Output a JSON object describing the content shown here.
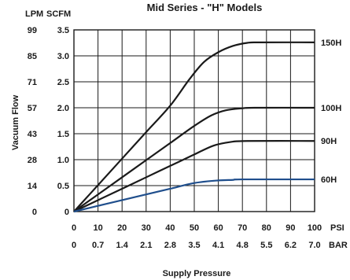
{
  "chart_data": {
    "type": "line",
    "title": "Mid Series - \"H\" Models",
    "xlabel": "Supply Pressure",
    "ylabel": "Vacuum Flow",
    "x_unit_primary": "PSI",
    "x_unit_secondary": "BAR",
    "y_unit_left": "LPM",
    "y_unit_right": "SCFM",
    "x_ticks_psi": [
      "0",
      "10",
      "20",
      "30",
      "40",
      "50",
      "60",
      "70",
      "80",
      "90",
      "100"
    ],
    "x_ticks_bar": [
      "0",
      "0.7",
      "1.4",
      "2.1",
      "2.8",
      "3.5",
      "4.1",
      "4.8",
      "5.5",
      "6.2",
      "7.0"
    ],
    "y_ticks_scfm": [
      "0",
      "0.5",
      "1.0",
      "1.5",
      "2.0",
      "2.5",
      "3.0",
      "3.5"
    ],
    "y_ticks_lpm": [
      "0",
      "14",
      "28",
      "43",
      "57",
      "71",
      "85",
      "99"
    ],
    "xlim": [
      0,
      100
    ],
    "ylim": [
      0,
      3.5
    ],
    "grid": true,
    "series": [
      {
        "name": "150H",
        "color": "#1a1a1a",
        "points": [
          [
            0,
            0
          ],
          [
            10,
            0.51
          ],
          [
            20,
            1.02
          ],
          [
            30,
            1.53
          ],
          [
            40,
            2.04
          ],
          [
            48,
            2.55
          ],
          [
            54,
            2.88
          ],
          [
            60,
            3.07
          ],
          [
            66,
            3.19
          ],
          [
            72,
            3.25
          ],
          [
            77,
            3.26
          ],
          [
            100,
            3.26
          ]
        ]
      },
      {
        "name": "100H",
        "color": "#1a1a1a",
        "points": [
          [
            0,
            0
          ],
          [
            10,
            0.33
          ],
          [
            20,
            0.66
          ],
          [
            30,
            0.99
          ],
          [
            40,
            1.32
          ],
          [
            50,
            1.65
          ],
          [
            57,
            1.85
          ],
          [
            63,
            1.95
          ],
          [
            70,
            1.99
          ],
          [
            75,
            2.0
          ],
          [
            100,
            2.0
          ]
        ]
      },
      {
        "name": "90H",
        "color": "#1a1a1a",
        "points": [
          [
            0,
            0
          ],
          [
            10,
            0.22
          ],
          [
            20,
            0.44
          ],
          [
            30,
            0.66
          ],
          [
            40,
            0.88
          ],
          [
            50,
            1.1
          ],
          [
            58,
            1.27
          ],
          [
            65,
            1.34
          ],
          [
            72,
            1.36
          ],
          [
            100,
            1.36
          ]
        ]
      },
      {
        "name": "60H",
        "color": "#1f4e8c",
        "points": [
          [
            0,
            0
          ],
          [
            10,
            0.11
          ],
          [
            20,
            0.22
          ],
          [
            30,
            0.33
          ],
          [
            40,
            0.44
          ],
          [
            50,
            0.55
          ],
          [
            60,
            0.6
          ],
          [
            66,
            0.61
          ],
          [
            70,
            0.62
          ],
          [
            100,
            0.62
          ]
        ]
      }
    ]
  }
}
